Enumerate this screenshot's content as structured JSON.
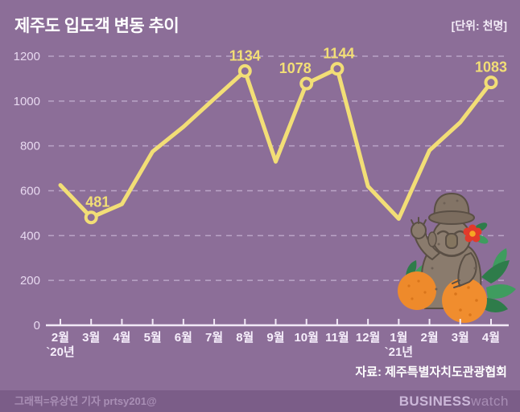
{
  "header": {
    "title": "제주도 입도객 변동 추이",
    "unit_note": "[단위: 천명]"
  },
  "chart_data": {
    "type": "line",
    "title": "제주도 입도객 변동 추이",
    "unit": "천명 (thousand persons)",
    "categories": [
      "2월",
      "3월",
      "4월",
      "5월",
      "6월",
      "7월",
      "8월",
      "9월",
      "10월",
      "11월",
      "12월",
      "1월",
      "2월",
      "3월",
      "4월"
    ],
    "year_markers": [
      {
        "index": 0,
        "label": "`20년"
      },
      {
        "index": 11,
        "label": "`21년"
      }
    ],
    "values": [
      625,
      481,
      540,
      775,
      885,
      1010,
      1134,
      730,
      1078,
      1144,
      620,
      475,
      780,
      905,
      1083
    ],
    "data_labels": [
      {
        "index": 1,
        "text": "481",
        "dx": 8
      },
      {
        "index": 6,
        "text": "1134",
        "dx": 0
      },
      {
        "index": 8,
        "text": "1078",
        "dx": -14
      },
      {
        "index": 9,
        "text": "1144",
        "dx": 2
      },
      {
        "index": 14,
        "text": "1083",
        "dx": 0
      }
    ],
    "ylim": [
      0,
      1200
    ],
    "yticks": [
      0,
      200,
      400,
      600,
      800,
      1000,
      1200
    ],
    "grid": "horizontal-dashed",
    "legend": "none",
    "colors": {
      "background": "#8c6e98",
      "line": "#f2de76",
      "grid": "#c3aed0",
      "axis": "#f2e9f7",
      "tick_label": "#e8d9f0",
      "month_label": "#f6eefb"
    }
  },
  "source": {
    "label": "자료: 제주특별자치도관광협회"
  },
  "footer": {
    "credit": "그래픽=유상연 기자 prtsy201@",
    "logo_part1": "BUSINESS",
    "logo_part2": "watch"
  },
  "illustration": {
    "name": "dol-hareubang-with-tangerines"
  }
}
